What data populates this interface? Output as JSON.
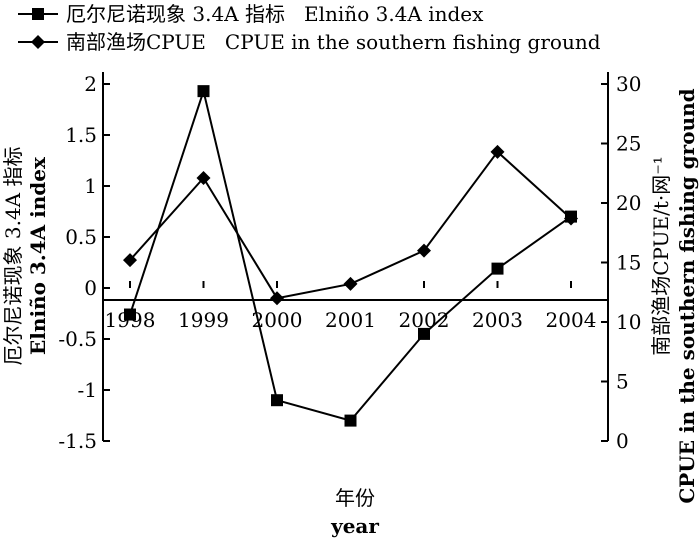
{
  "chart_data": {
    "type": "line",
    "categories": [
      "1998",
      "1999",
      "2000",
      "2001",
      "2002",
      "2003",
      "2004"
    ],
    "series": [
      {
        "name": "厄尔尼诺现象 3.4A 指标   Elniño 3.4A index",
        "axis": "left",
        "marker": "square",
        "values": [
          -0.26,
          1.93,
          -1.1,
          -1.3,
          -0.45,
          0.19,
          0.7
        ]
      },
      {
        "name": "南部渔场CPUE   CPUE in the southern fishing ground",
        "axis": "right",
        "marker": "diamond",
        "values": [
          15.2,
          22.1,
          12.0,
          13.2,
          16.0,
          24.3,
          18.7
        ]
      }
    ],
    "xlabel": "年份",
    "xlabel_en": "year",
    "ylabel_left": "厄尔尼诺现象 3.4A 指标",
    "ylabel_left_en": "Elniño 3.4A index",
    "ylabel_right": "南部渔场CPUE/t·网⁻¹",
    "ylabel_right_en": "CPUE in the southern fishing ground",
    "ylim_left": [
      -1.5,
      2
    ],
    "yticks_left": [
      "2",
      "1.5",
      "1",
      "0.5",
      "0",
      "-0.5",
      "-1",
      "-1.5"
    ],
    "ylim_right": [
      0,
      30
    ],
    "yticks_right": [
      "30",
      "25",
      "20",
      "15",
      "10",
      "5",
      "0"
    ],
    "grid": false,
    "legend_position": "top-left"
  }
}
